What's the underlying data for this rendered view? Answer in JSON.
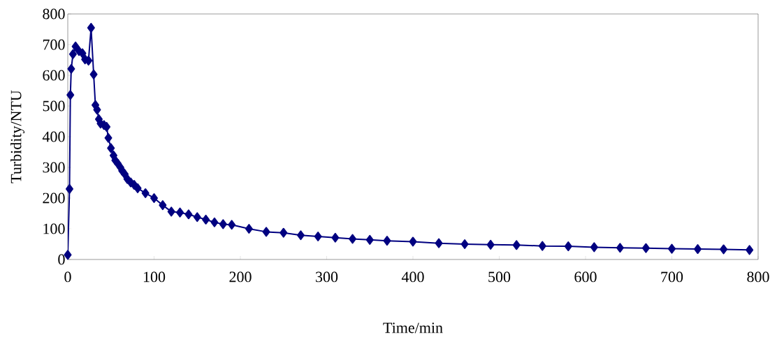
{
  "chart_data": {
    "type": "line",
    "xlabel": "Time/min",
    "ylabel": "Turbidity/NTU",
    "x": [
      0,
      2,
      3,
      4,
      6,
      9,
      13,
      17,
      20,
      24,
      27,
      30,
      32,
      34,
      36,
      38,
      42,
      45,
      47,
      50,
      53,
      55,
      58,
      61,
      63,
      66,
      69,
      73,
      77,
      81,
      90,
      100,
      110,
      120,
      130,
      140,
      150,
      160,
      170,
      180,
      190,
      210,
      230,
      250,
      270,
      290,
      310,
      330,
      350,
      370,
      400,
      430,
      460,
      490,
      520,
      550,
      580,
      610,
      640,
      670,
      700,
      730,
      760,
      790
    ],
    "series": [
      {
        "color": "#000080",
        "values": [
          15,
          230,
          536,
          621,
          669,
          694,
          679,
          672,
          652,
          648,
          755,
          603,
          503,
          488,
          457,
          443,
          438,
          432,
          396,
          363,
          339,
          323,
          312,
          300,
          289,
          278,
          262,
          251,
          243,
          232,
          216,
          200,
          177,
          156,
          153,
          147,
          138,
          130,
          121,
          115,
          113,
          100,
          90,
          87,
          79,
          75,
          71,
          67,
          64,
          61,
          58,
          53,
          50,
          48,
          47,
          44,
          43,
          40,
          38,
          37,
          35,
          34,
          33,
          31
        ]
      }
    ],
    "xlim": [
      0,
      800
    ],
    "xticks": [
      0,
      100,
      200,
      300,
      400,
      500,
      600,
      700,
      800
    ],
    "ylim": [
      0,
      800
    ],
    "yticks": [
      0,
      100,
      200,
      300,
      400,
      500,
      600,
      700,
      800
    ],
    "grid": false,
    "marker": "diamond",
    "line_style": "solid"
  }
}
